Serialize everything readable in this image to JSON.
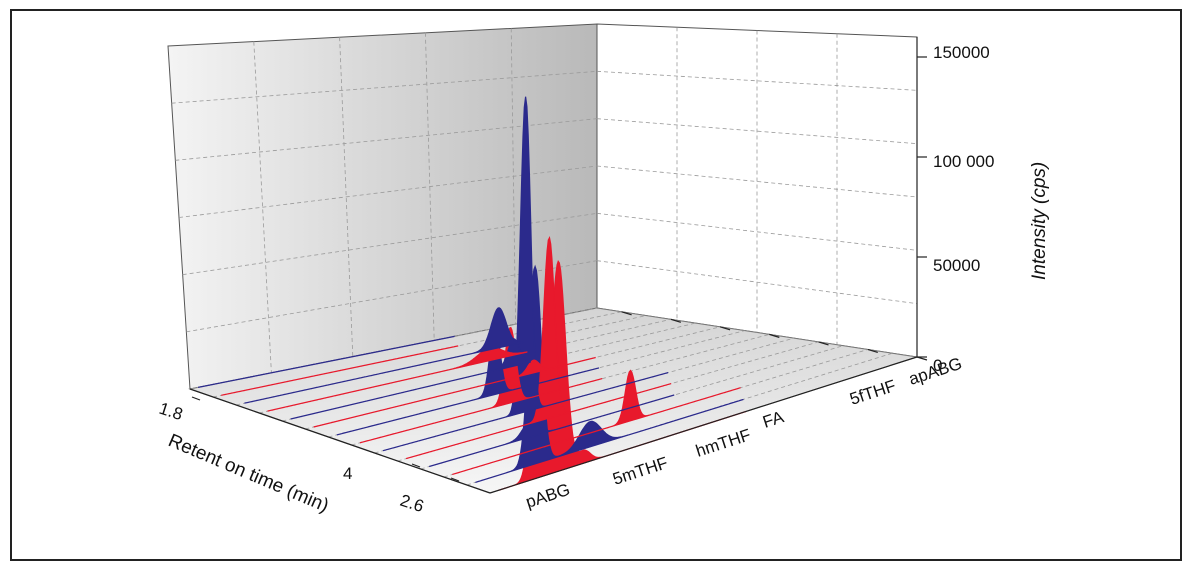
{
  "chart_data": {
    "type": "area",
    "subtype": "3d-waterfall-chromatogram",
    "title": "",
    "xlabel": "Retent on time (min)",
    "zlabel": "Intensity (cps)",
    "xticks": [
      "1.8",
      "4",
      "2.6"
    ],
    "zticks": [
      "0",
      "50000",
      "100 000",
      "150000"
    ],
    "zlim": [
      0,
      150000
    ],
    "grid": true,
    "colors": {
      "red": "#e8192c",
      "blue": "#2b2a8c"
    },
    "series": [
      {
        "label": "",
        "color": "red",
        "peaks": [
          {
            "rt": 0.1,
            "height": 31000,
            "width": 0.012
          },
          {
            "rt": 0.16,
            "height": 100000,
            "width": 0.017
          },
          {
            "rt": 0.22,
            "height": 6000,
            "width": 0.015
          }
        ]
      },
      {
        "label": "",
        "color": "blue",
        "peaks": [
          {
            "rt": 0.16,
            "height": 94000,
            "width": 0.015
          },
          {
            "rt": 0.29,
            "height": 12000,
            "width": 0.025
          }
        ]
      },
      {
        "label": "pABG",
        "color": "red",
        "peaks": [
          {
            "rt": 0.44,
            "height": 24000,
            "width": 0.012
          }
        ]
      },
      {
        "label": "",
        "color": "blue",
        "peaks": [
          {
            "rt": 0.26,
            "height": 8000,
            "width": 0.018
          }
        ]
      },
      {
        "label": "5mTHF",
        "color": "red",
        "peaks": [
          {
            "rt": 0.36,
            "height": 86000,
            "width": 0.013
          }
        ]
      },
      {
        "label": "",
        "color": "blue",
        "peaks": [
          {
            "rt": 0.36,
            "height": 150000,
            "width": 0.012
          }
        ]
      },
      {
        "label": "hmTHF",
        "color": "red",
        "peaks": [
          {
            "rt": 0.38,
            "height": 36000,
            "width": 0.013
          }
        ]
      },
      {
        "label": "",
        "color": "blue",
        "peaks": [
          {
            "rt": 0.4,
            "height": 34000,
            "width": 0.012
          }
        ]
      },
      {
        "label": "FA",
        "color": "red",
        "peaks": [
          {
            "rt": 0.55,
            "height": 6000,
            "width": 0.014
          }
        ]
      },
      {
        "label": "",
        "color": "blue",
        "peaks": [
          {
            "rt": 0.56,
            "height": 13000,
            "width": 0.014
          }
        ]
      },
      {
        "label": "5fTHF",
        "color": "red",
        "peaks": [
          {
            "rt": 0.56,
            "height": 6000,
            "width": 0.03
          }
        ]
      },
      {
        "label": "",
        "color": "blue",
        "peaks": [
          {
            "rt": 0.64,
            "height": 19000,
            "width": 0.018
          }
        ]
      },
      {
        "label": "apABG",
        "color": "red",
        "peaks": [
          {
            "rt": 0.7,
            "height": 24000,
            "width": 0.012
          }
        ]
      },
      {
        "label": "",
        "color": "blue",
        "peaks": [
          {
            "rt": 0.77,
            "height": 75000,
            "width": 0.012
          }
        ]
      }
    ]
  }
}
